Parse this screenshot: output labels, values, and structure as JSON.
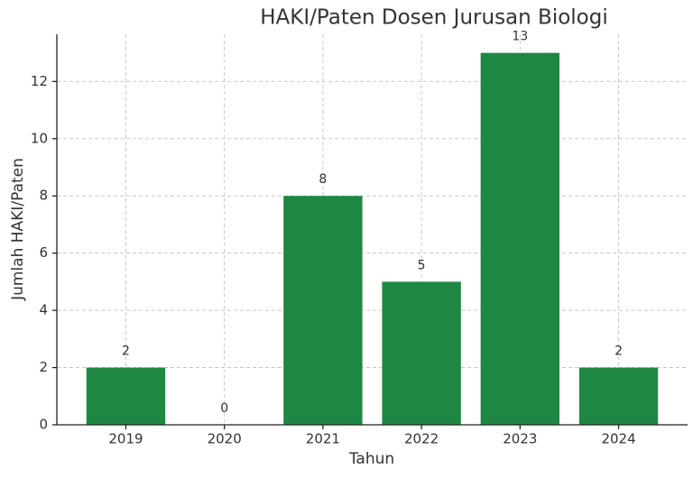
{
  "chart_data": {
    "type": "bar",
    "title": "HAKI/Paten Dosen Jurusan Biologi",
    "x_label": "Tahun",
    "y_label": "Jumlah HAKI/Paten",
    "categories": [
      "2019",
      "2020",
      "2021",
      "2022",
      "2023",
      "2024"
    ],
    "values": [
      2,
      0,
      8,
      5,
      13,
      2
    ],
    "color": "#1e8744",
    "ylim": [
      0,
      13.65
    ],
    "yticks": [
      0,
      2,
      4,
      6,
      8,
      10,
      12
    ],
    "grid": true
  }
}
